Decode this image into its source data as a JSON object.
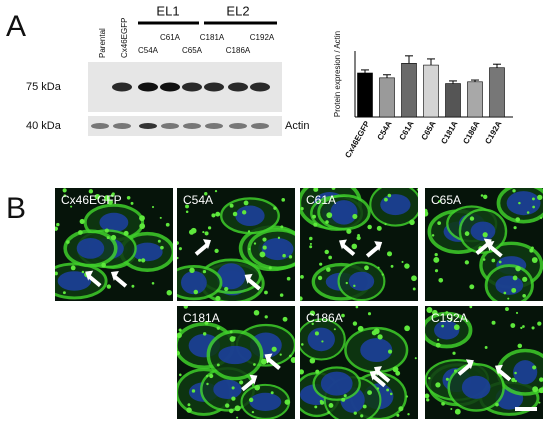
{
  "panel_labels": [
    "A",
    "B"
  ],
  "blot": {
    "lanes": [
      "Parental",
      "Cx46EGFP"
    ],
    "groups": [
      "EL1",
      "EL2"
    ],
    "mutants_top": [
      "C61A",
      "C181A",
      "C192A"
    ],
    "mutants_bottom": [
      "C54A",
      "C65A",
      "C186A"
    ],
    "markers": [
      "75 kDa",
      "40 kDa"
    ],
    "loading_control": "Actin"
  },
  "chart_data": {
    "type": "bar",
    "y_label": "Protein expresion / Actin",
    "categories": [
      "Cx46EGFP",
      "C54A",
      "C61A",
      "C65A",
      "C181A",
      "C186A",
      "C192A"
    ],
    "values": [
      1.0,
      0.89,
      1.22,
      1.18,
      0.76,
      0.8,
      1.12
    ],
    "errors": [
      0.07,
      0.07,
      0.17,
      0.14,
      0.06,
      0.04,
      0.08
    ],
    "colors": [
      "#000000",
      "#9a9a9a",
      "#6a6a6a",
      "#d4d4d4",
      "#555555",
      "#a8a8a8",
      "#777777"
    ],
    "ylim": [
      0,
      1.5
    ]
  },
  "micrographs": {
    "labels": [
      "Cx46EGFP",
      "C54A",
      "C61A",
      "C65A",
      "C181A",
      "C186A",
      "C192A"
    ]
  }
}
